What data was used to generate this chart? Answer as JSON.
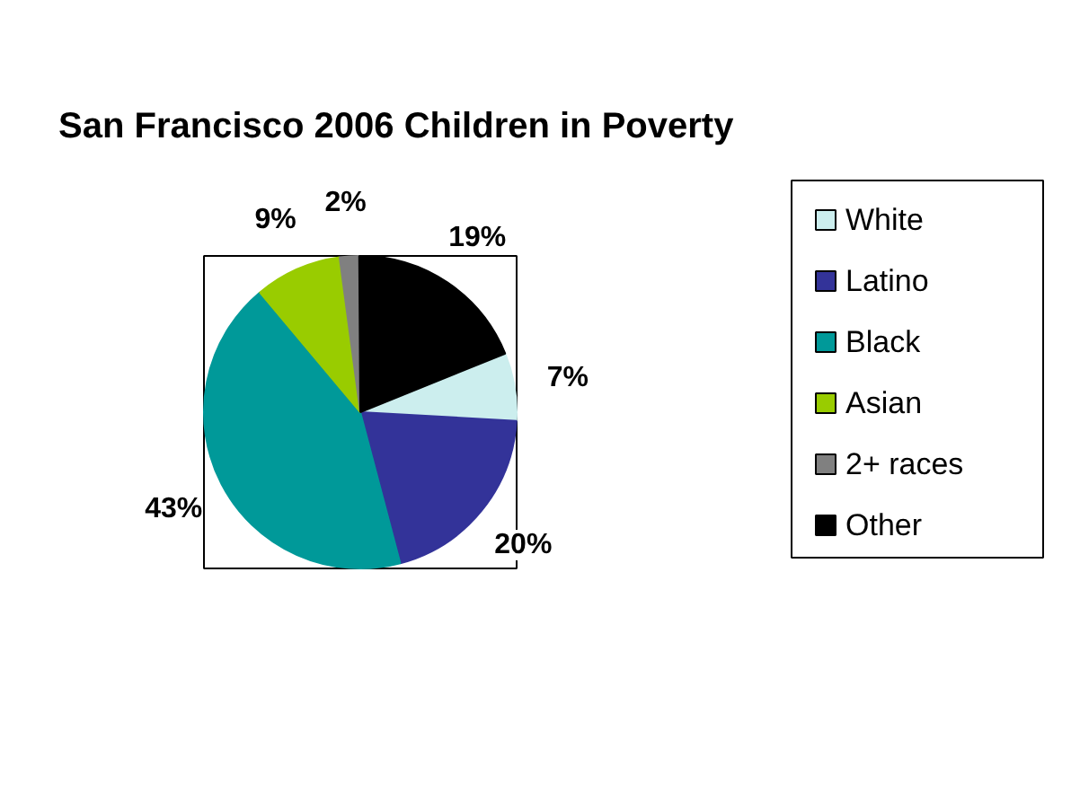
{
  "chart_data": {
    "type": "pie",
    "title": "San Francisco 2006 Children in Poverty",
    "categories": [
      "White",
      "Latino",
      "Black",
      "Asian",
      "2+ races",
      "Other"
    ],
    "values": [
      7,
      20,
      43,
      9,
      2,
      19
    ],
    "colors": [
      "#cceeee",
      "#333399",
      "#009999",
      "#99cc00",
      "#808080",
      "#000000"
    ],
    "value_labels": [
      "7%",
      "20%",
      "43%",
      "9%",
      "2%",
      "19%"
    ],
    "legend": "right"
  }
}
